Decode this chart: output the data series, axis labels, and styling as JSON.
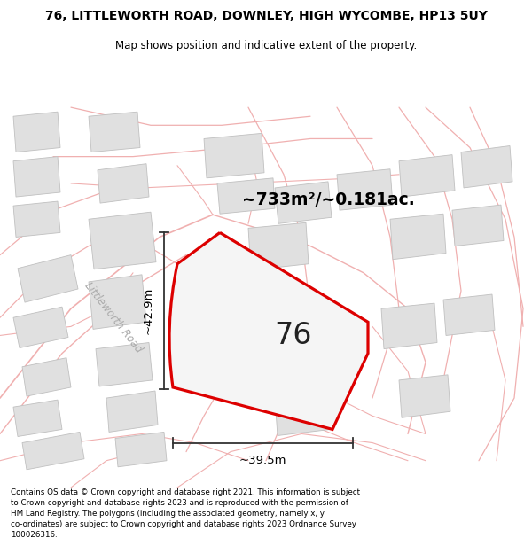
{
  "title": "76, LITTLEWORTH ROAD, DOWNLEY, HIGH WYCOMBE, HP13 5UY",
  "subtitle": "Map shows position and indicative extent of the property.",
  "footer": "Contains OS data © Crown copyright and database right 2021. This information is subject to Crown copyright and database rights 2023 and is reproduced with the permission of HM Land Registry. The polygons (including the associated geometry, namely x, y co-ordinates) are subject to Crown copyright and database rights 2023 Ordnance Survey 100026316.",
  "area_label": "~733m²/~0.181ac.",
  "number_label": "76",
  "dim_width": "~39.5m",
  "dim_height": "~42.9m",
  "road_label": "Littleworth Road",
  "background_color": "#ffffff",
  "map_bg": "#ffffff",
  "plot_color": "#dd0000",
  "building_color": "#e0e0e0",
  "building_edge": "#c0c0c0",
  "road_line_color": "#f0b0b0",
  "dim_line_color": "#333333",
  "figsize": [
    6.0,
    6.25
  ],
  "dpi": 100,
  "title_fontsize": 10.0,
  "subtitle_fontsize": 8.5,
  "footer_fontsize": 6.3
}
